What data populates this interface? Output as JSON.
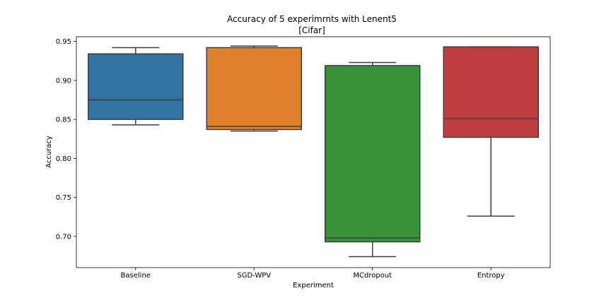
{
  "chart_data": {
    "type": "box",
    "title": "Accuracy of 5 experimrnts with Lenent5",
    "subtitle": "[Cifar]",
    "xlabel": "Experiment",
    "ylabel": "Accuracy",
    "ylim": [
      0.66,
      0.956
    ],
    "yticks": [
      "0.70",
      "0.75",
      "0.80",
      "0.85",
      "0.90",
      "0.95"
    ],
    "ytick_values": [
      0.7,
      0.75,
      0.8,
      0.85,
      0.9,
      0.95
    ],
    "grid": false,
    "categories": [
      "Baseline",
      "SGD-WPV",
      "MCdropout",
      "Entropy"
    ],
    "boxes": [
      {
        "category": "Baseline",
        "whisker_low": 0.843,
        "q1": 0.85,
        "median": 0.875,
        "q3": 0.934,
        "whisker_high": 0.942,
        "color": "#3274a1"
      },
      {
        "category": "SGD-WPV",
        "whisker_low": 0.835,
        "q1": 0.837,
        "median": 0.841,
        "q3": 0.942,
        "whisker_high": 0.944,
        "color": "#e1812c"
      },
      {
        "category": "MCdropout",
        "whisker_low": 0.674,
        "q1": 0.693,
        "median": 0.698,
        "q3": 0.919,
        "whisker_high": 0.923,
        "color": "#3a923a"
      },
      {
        "category": "Entropy",
        "whisker_low": 0.726,
        "q1": 0.827,
        "median": 0.851,
        "q3": 0.943,
        "whisker_high": 0.943,
        "color": "#c03d3e"
      }
    ]
  }
}
